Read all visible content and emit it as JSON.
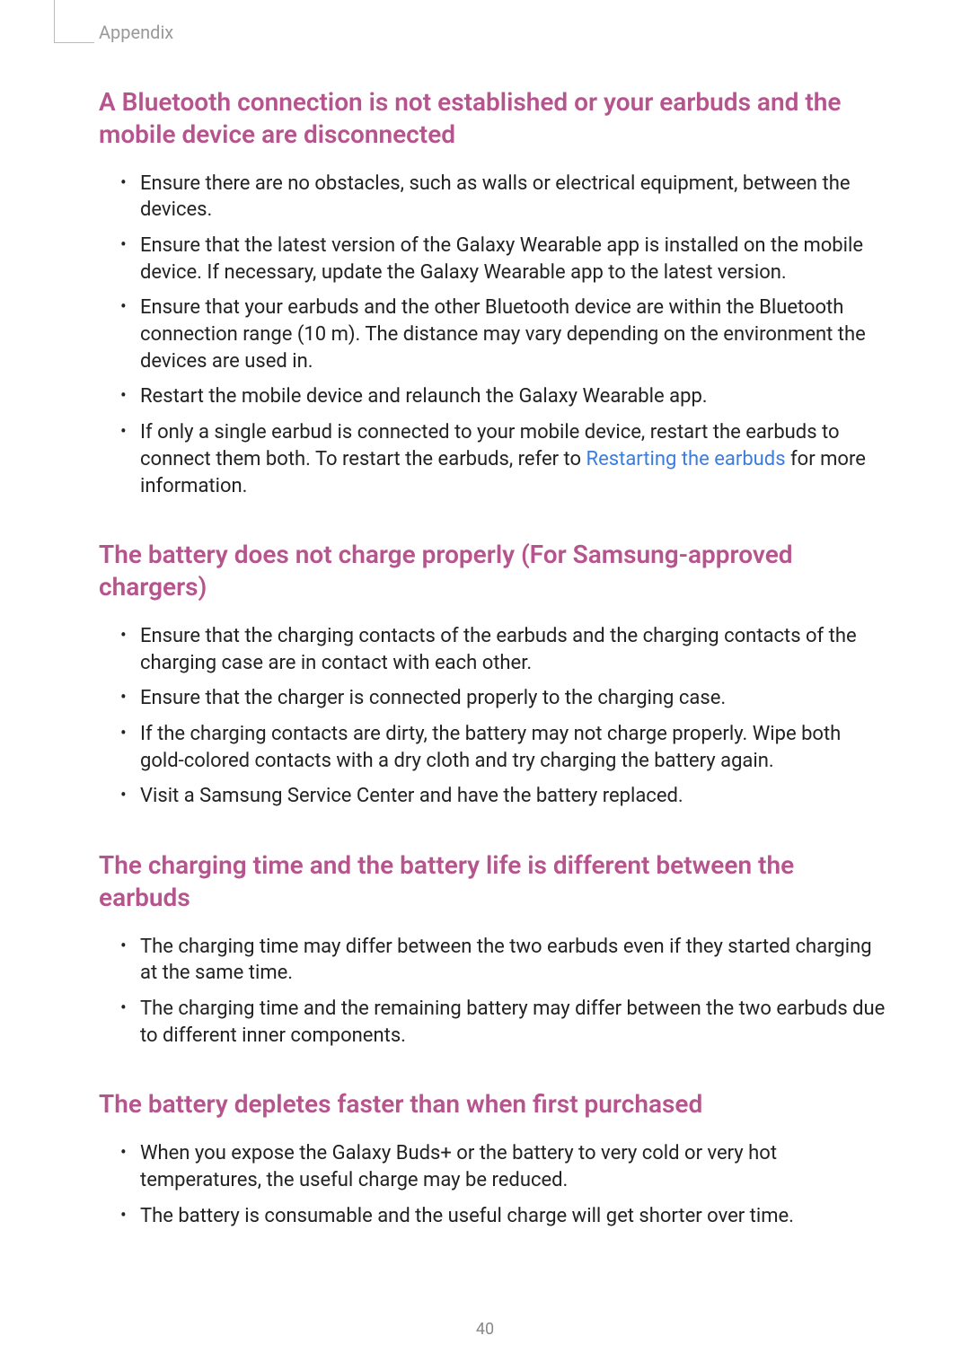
{
  "colors": {
    "heading": "#b6548d",
    "link": "#3b7ddd",
    "body_text": "#222222",
    "muted": "#999999",
    "page_bg": "#ffffff"
  },
  "breadcrumb": "Appendix",
  "page_number": "40",
  "sections": [
    {
      "heading": "A Bluetooth connection is not established or your earbuds and the mobile device are disconnected",
      "items": [
        {
          "text": "Ensure there are no obstacles, such as walls or electrical equipment, between the devices."
        },
        {
          "text": "Ensure that the latest version of the Galaxy Wearable app is installed on the mobile device. If necessary, update the Galaxy Wearable app to the latest version."
        },
        {
          "text": "Ensure that your earbuds and the other Bluetooth device are within the Bluetooth connection range (10 m). The distance may vary depending on the environment the devices are used in."
        },
        {
          "text": "Restart the mobile device and relaunch the Galaxy Wearable app."
        },
        {
          "pre": "If only a single earbud is connected to your mobile device, restart the earbuds to connect them both. To restart the earbuds, refer to ",
          "link": "Restarting the earbuds",
          "post": " for more information."
        }
      ]
    },
    {
      "heading": "The battery does not charge properly (For Samsung-approved chargers)",
      "items": [
        {
          "text": "Ensure that the charging contacts of the earbuds and the charging contacts of the charging case are in contact with each other."
        },
        {
          "text": "Ensure that the charger is connected properly to the charging case."
        },
        {
          "text": "If the charging contacts are dirty, the battery may not charge properly. Wipe both gold-colored contacts with a dry cloth and try charging the battery again."
        },
        {
          "text": "Visit a Samsung Service Center and have the battery replaced."
        }
      ]
    },
    {
      "heading": "The charging time and the battery life is different between the earbuds",
      "items": [
        {
          "text": "The charging time may differ between the two earbuds even if they started charging at the same time."
        },
        {
          "text": "The charging time and the remaining battery may differ between the two earbuds due to different inner components."
        }
      ]
    },
    {
      "heading": "The battery depletes faster than when first purchased",
      "items": [
        {
          "text": "When you expose the Galaxy Buds+ or the battery to very cold or very hot temperatures, the useful charge may be reduced."
        },
        {
          "text": "The battery is consumable and the useful charge will get shorter over time."
        }
      ]
    }
  ]
}
